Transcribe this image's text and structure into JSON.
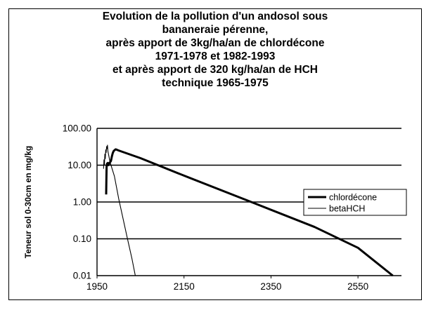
{
  "chart_data": {
    "type": "line",
    "title_lines": [
      "Evolution de la pollution d'un andosol sous",
      "bananeraie pérenne,",
      "après apport de 3kg/ha/an de chlordécone",
      "1971-1978 et 1982-1993",
      "et après apport de 320 kg/ha/an de HCH",
      "technique 1965-1975"
    ],
    "ylabel": "Teneur sol 0-30cm en mg/kg",
    "xlabel": "",
    "y_scale": "log",
    "ylim": [
      0.01,
      100
    ],
    "xlim": [
      1950,
      2650
    ],
    "x_ticks": [
      "1950",
      "2150",
      "2350",
      "2550"
    ],
    "x_tick_values": [
      1950,
      2150,
      2350,
      2550
    ],
    "y_ticks": [
      "100.00",
      "10.00",
      "1.00",
      "0.10",
      "0.01"
    ],
    "y_tick_values": [
      100,
      10,
      1,
      0.1,
      0.01
    ],
    "grid": "horizontal",
    "legend_position": "right",
    "series": [
      {
        "name": "chlordécone",
        "color": "#000000",
        "points": [
          [
            1971,
            1.6
          ],
          [
            1971.5,
            4
          ],
          [
            1972,
            9
          ],
          [
            1973,
            11
          ],
          [
            1975,
            11.5
          ],
          [
            1976,
            10
          ],
          [
            1978,
            11
          ],
          [
            1980,
            12
          ],
          [
            1982,
            13
          ],
          [
            1984,
            17
          ],
          [
            1986,
            21
          ],
          [
            1988,
            24
          ],
          [
            1991,
            26
          ],
          [
            1993,
            27
          ],
          [
            2000,
            25
          ],
          [
            2050,
            15.5
          ],
          [
            2150,
            5.2
          ],
          [
            2300,
            1.05
          ],
          [
            2450,
            0.21
          ],
          [
            2550,
            0.057
          ],
          [
            2630,
            0.01
          ]
        ]
      },
      {
        "name": "betaHCH",
        "color": "#000000",
        "points": [
          [
            1965,
            8
          ],
          [
            1966,
            14
          ],
          [
            1967,
            10
          ],
          [
            1968,
            20
          ],
          [
            1969,
            15
          ],
          [
            1970,
            26
          ],
          [
            1971,
            22
          ],
          [
            1972,
            32
          ],
          [
            1973,
            28
          ],
          [
            1974,
            35
          ],
          [
            1975,
            24
          ],
          [
            1980,
            12
          ],
          [
            1990,
            5
          ],
          [
            2000,
            1.2
          ],
          [
            2020,
            0.1
          ],
          [
            2030,
            0.03
          ],
          [
            2038,
            0.01
          ]
        ]
      }
    ]
  }
}
